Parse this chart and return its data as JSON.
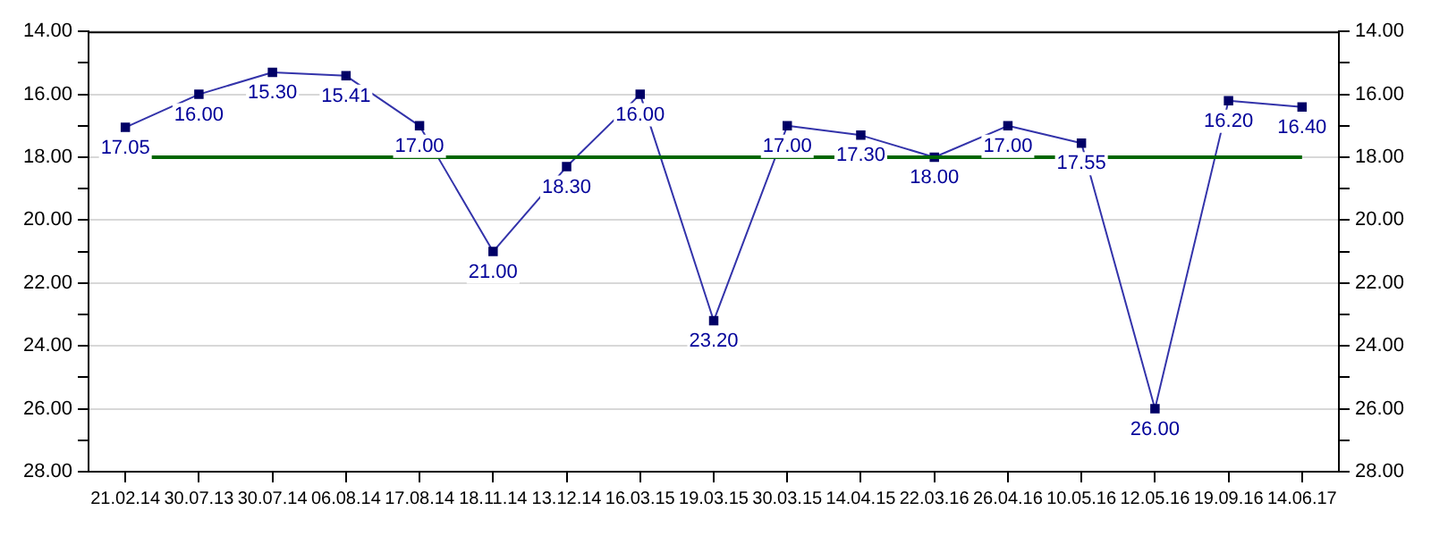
{
  "chart_data": {
    "type": "line",
    "categories": [
      "21.02.14",
      "30.07.13",
      "30.07.14",
      "06.08.14",
      "17.08.14",
      "18.11.14",
      "13.12.14",
      "16.03.15",
      "19.03.15",
      "30.03.15",
      "14.04.15",
      "22.03.16",
      "26.04.16",
      "10.05.16",
      "12.05.16",
      "19.09.16",
      "14.06.17"
    ],
    "series": [
      {
        "color": "#3333aa",
        "values": [
          17.05,
          16.0,
          15.3,
          15.41,
          17.0,
          21.0,
          18.3,
          16.0,
          23.2,
          17.0,
          17.3,
          18.0,
          17.0,
          17.55,
          26.0,
          16.2,
          16.4
        ],
        "value_labels": [
          "17.05",
          "16.00",
          "15.30",
          "15.41",
          "17.00",
          "21.00",
          "18.30",
          "16.00",
          "23.20",
          "17.00",
          "17.30",
          "18.00",
          "17.00",
          "17.55",
          "26.00",
          "16.20",
          "16.40"
        ]
      }
    ],
    "marker": "square",
    "line_style": "solid",
    "legend": false,
    "grid": "y",
    "ylim": [
      28,
      14
    ],
    "yticks": [
      {
        "value": 14,
        "label": "14.00"
      },
      {
        "value": 15,
        "label": null
      },
      {
        "value": 16,
        "label": "16.00"
      },
      {
        "value": 17,
        "label": null
      },
      {
        "value": 18,
        "label": "18.00"
      },
      {
        "value": 19,
        "label": null
      },
      {
        "value": 20,
        "label": "20.00"
      },
      {
        "value": 21,
        "label": null
      },
      {
        "value": 22,
        "label": "22.00"
      },
      {
        "value": 23,
        "label": null
      },
      {
        "value": 24,
        "label": "24.00"
      },
      {
        "value": 25,
        "label": null
      },
      {
        "value": 26,
        "label": "26.00"
      },
      {
        "value": 27,
        "label": null
      },
      {
        "value": 28,
        "label": "28.00"
      }
    ],
    "y2lim": [
      28,
      14
    ],
    "y2ticks": [
      {
        "value": 14,
        "label": "14.00"
      },
      {
        "value": 15,
        "label": null
      },
      {
        "value": 16,
        "label": "16.00"
      },
      {
        "value": 17,
        "label": null
      },
      {
        "value": 18,
        "label": "18.00"
      },
      {
        "value": 19,
        "label": null
      },
      {
        "value": 20,
        "label": "20.00"
      },
      {
        "value": 21,
        "label": null
      },
      {
        "value": 22,
        "label": "22.00"
      },
      {
        "value": 23,
        "label": null
      },
      {
        "value": 24,
        "label": "24.00"
      },
      {
        "value": 25,
        "label": null
      },
      {
        "value": 26,
        "label": "26.00"
      },
      {
        "value": 27,
        "label": null
      },
      {
        "value": 28,
        "label": "28.00"
      }
    ],
    "ref_lines": [
      {
        "axis": "y",
        "value": 18,
        "color": "#006600",
        "line_style": "solid"
      }
    ]
  }
}
